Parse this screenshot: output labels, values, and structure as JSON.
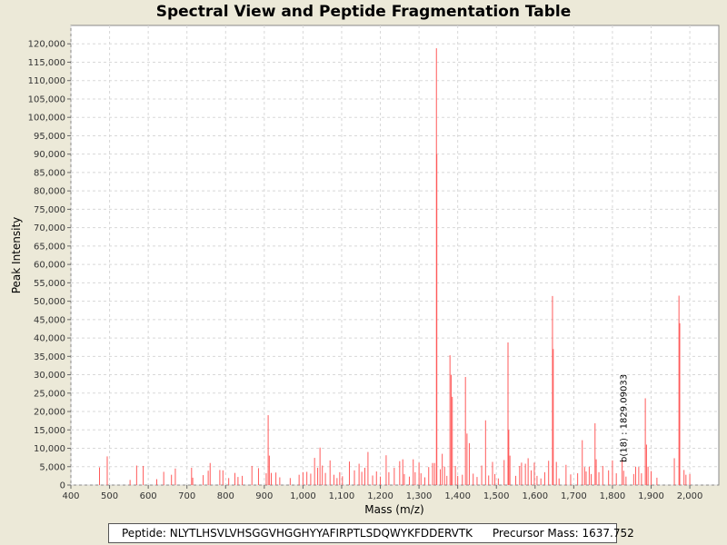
{
  "chart_data": {
    "type": "bar",
    "title": "Spectral View and Peptide Fragmentation Table",
    "xlabel": "Mass (m/z)",
    "ylabel": "Peak Intensity",
    "xlim": [
      400,
      2075
    ],
    "ylim": [
      0,
      125000
    ],
    "x_ticks": [
      "400",
      "500",
      "600",
      "700",
      "800",
      "900",
      "1,000",
      "1,100",
      "1,200",
      "1,300",
      "1,400",
      "1,500",
      "1,600",
      "1,700",
      "1,800",
      "1,900",
      "2,000"
    ],
    "y_ticks": [
      "0",
      "5,000",
      "10,000",
      "15,000",
      "20,000",
      "25,000",
      "30,000",
      "35,000",
      "40,000",
      "45,000",
      "50,000",
      "55,000",
      "60,000",
      "65,000",
      "70,000",
      "75,000",
      "80,000",
      "85,000",
      "90,000",
      "95,000",
      "100,000",
      "105,000",
      "110,000",
      "115,000",
      "120,000"
    ],
    "grid": true,
    "bar_color": "#ff5a5a",
    "peaks": [
      [
        474,
        4800
      ],
      [
        494,
        7800
      ],
      [
        553,
        1400
      ],
      [
        570,
        5300
      ],
      [
        587,
        5200
      ],
      [
        622,
        1600
      ],
      [
        640,
        3600
      ],
      [
        660,
        2800
      ],
      [
        670,
        4500
      ],
      [
        712,
        4700
      ],
      [
        715,
        2000
      ],
      [
        742,
        2700
      ],
      [
        755,
        3900
      ],
      [
        760,
        6000
      ],
      [
        785,
        4100
      ],
      [
        793,
        4000
      ],
      [
        808,
        1900
      ],
      [
        824,
        3300
      ],
      [
        832,
        2200
      ],
      [
        843,
        2500
      ],
      [
        868,
        5200
      ],
      [
        885,
        4600
      ],
      [
        905,
        3200
      ],
      [
        910,
        19000
      ],
      [
        913,
        8000
      ],
      [
        918,
        3300
      ],
      [
        930,
        3400
      ],
      [
        940,
        2100
      ],
      [
        967,
        1900
      ],
      [
        990,
        2800
      ],
      [
        1000,
        3500
      ],
      [
        1010,
        3600
      ],
      [
        1020,
        3100
      ],
      [
        1030,
        7400
      ],
      [
        1038,
        4700
      ],
      [
        1044,
        10200
      ],
      [
        1050,
        5300
      ],
      [
        1058,
        3300
      ],
      [
        1070,
        6700
      ],
      [
        1080,
        2800
      ],
      [
        1088,
        1900
      ],
      [
        1095,
        3500
      ],
      [
        1102,
        2400
      ],
      [
        1120,
        6400
      ],
      [
        1133,
        4000
      ],
      [
        1145,
        5800
      ],
      [
        1152,
        3600
      ],
      [
        1160,
        4700
      ],
      [
        1168,
        9000
      ],
      [
        1180,
        2600
      ],
      [
        1190,
        3700
      ],
      [
        1200,
        2300
      ],
      [
        1215,
        8100
      ],
      [
        1222,
        3500
      ],
      [
        1236,
        4700
      ],
      [
        1250,
        6500
      ],
      [
        1258,
        7000
      ],
      [
        1262,
        3000
      ],
      [
        1275,
        2300
      ],
      [
        1285,
        7000
      ],
      [
        1290,
        3500
      ],
      [
        1300,
        6100
      ],
      [
        1305,
        3200
      ],
      [
        1315,
        2100
      ],
      [
        1325,
        4900
      ],
      [
        1335,
        6000
      ],
      [
        1340,
        6000
      ],
      [
        1345,
        118800
      ],
      [
        1346,
        90000
      ],
      [
        1355,
        4300
      ],
      [
        1360,
        8500
      ],
      [
        1366,
        5000
      ],
      [
        1372,
        2500
      ],
      [
        1380,
        35300
      ],
      [
        1383,
        30000
      ],
      [
        1386,
        24000
      ],
      [
        1394,
        5200
      ],
      [
        1400,
        2500
      ],
      [
        1412,
        2800
      ],
      [
        1420,
        29400
      ],
      [
        1424,
        14000
      ],
      [
        1430,
        11400
      ],
      [
        1440,
        3100
      ],
      [
        1450,
        2200
      ],
      [
        1462,
        5300
      ],
      [
        1472,
        17600
      ],
      [
        1480,
        2600
      ],
      [
        1490,
        6300
      ],
      [
        1496,
        3000
      ],
      [
        1505,
        1800
      ],
      [
        1520,
        6800
      ],
      [
        1530,
        38800
      ],
      [
        1532,
        15000
      ],
      [
        1535,
        8000
      ],
      [
        1550,
        2500
      ],
      [
        1560,
        5200
      ],
      [
        1565,
        6100
      ],
      [
        1575,
        5800
      ],
      [
        1582,
        7300
      ],
      [
        1590,
        4000
      ],
      [
        1598,
        6100
      ],
      [
        1605,
        2500
      ],
      [
        1615,
        1800
      ],
      [
        1625,
        3500
      ],
      [
        1635,
        6600
      ],
      [
        1645,
        51400
      ],
      [
        1647,
        37000
      ],
      [
        1655,
        6300
      ],
      [
        1662,
        1800
      ],
      [
        1680,
        5500
      ],
      [
        1692,
        2900
      ],
      [
        1710,
        3200
      ],
      [
        1722,
        12200
      ],
      [
        1728,
        4900
      ],
      [
        1732,
        3700
      ],
      [
        1740,
        5000
      ],
      [
        1745,
        3000
      ],
      [
        1755,
        16800
      ],
      [
        1758,
        7000
      ],
      [
        1765,
        3500
      ],
      [
        1775,
        5200
      ],
      [
        1790,
        4000
      ],
      [
        1800,
        6700
      ],
      [
        1810,
        3200
      ],
      [
        1825,
        6900
      ],
      [
        1829,
        3900
      ],
      [
        1835,
        2300
      ],
      [
        1855,
        3000
      ],
      [
        1860,
        5000
      ],
      [
        1868,
        4900
      ],
      [
        1875,
        3200
      ],
      [
        1885,
        23600
      ],
      [
        1888,
        11000
      ],
      [
        1892,
        5000
      ],
      [
        1900,
        3800
      ],
      [
        1915,
        2000
      ],
      [
        1960,
        7300
      ],
      [
        1972,
        51500
      ],
      [
        1974,
        44000
      ],
      [
        1985,
        4100
      ],
      [
        1990,
        2800
      ],
      [
        2000,
        3000
      ]
    ],
    "annotations": [
      {
        "text": "b(18) : 1829.09033",
        "x": 1829,
        "y": 5200
      }
    ]
  },
  "footer": {
    "peptide_label": "Peptide:",
    "peptide_value": "NLYTLHSVLVHSGGVHGGHYYAFIRPTLSDQWYKFDDERVTK",
    "precursor_label": "Precursor Mass:",
    "precursor_value": "1637.752"
  }
}
